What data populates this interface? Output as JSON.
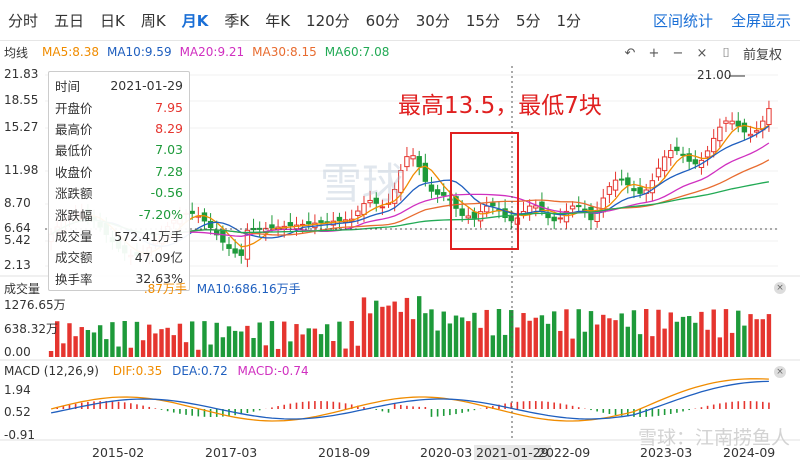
{
  "tabs": [
    "分时",
    "五日",
    "日K",
    "周K",
    "月K",
    "季K",
    "年K",
    "120分",
    "60分",
    "30分",
    "15分",
    "5分",
    "1分"
  ],
  "active_tab": "月K",
  "right_tabs": [
    "区间统计",
    "全屏显示"
  ],
  "ma_bar": {
    "label": "均线",
    "items": [
      {
        "text": "MA5:8.38",
        "color": "#f08c00"
      },
      {
        "text": "MA10:9.59",
        "color": "#1f5fbf"
      },
      {
        "text": "MA20:9.21",
        "color": "#d030c0"
      },
      {
        "text": "MA30:8.15",
        "color": "#e86c30"
      },
      {
        "text": "MA60:7.08",
        "color": "#22aa55"
      }
    ]
  },
  "toolbar": {
    "undo_icon": "↶",
    "plus_icon": "+",
    "minus_icon": "−",
    "close_icon": "×",
    "more_icon": "⌷",
    "fuquan": "前复权"
  },
  "price_axis": [
    "21.83",
    "18.55",
    "15.27",
    "11.98",
    "8.70",
    "6.64",
    "5.42",
    "2.13"
  ],
  "max_label": "21.00",
  "tooltip": {
    "rows": [
      {
        "k": "时间",
        "v": "2021-01-29",
        "c": ""
      },
      {
        "k": "开盘价",
        "v": "7.95",
        "c": "red"
      },
      {
        "k": "最高价",
        "v": "8.29",
        "c": "red"
      },
      {
        "k": "最低价",
        "v": "7.03",
        "c": "green"
      },
      {
        "k": "收盘价",
        "v": "7.28",
        "c": "green"
      },
      {
        "k": "涨跌额",
        "v": "-0.56",
        "c": "green"
      },
      {
        "k": "涨跌幅",
        "v": "-7.20%",
        "c": "green"
      },
      {
        "k": "成交量",
        "v": "572.41万手",
        "c": ""
      },
      {
        "k": "成交额",
        "v": "47.09亿",
        "c": ""
      },
      {
        "k": "换手率",
        "v": "32.63%",
        "c": ""
      }
    ]
  },
  "annotation": "最高13.5，最低7块",
  "volume": {
    "title": "成交量",
    "ma_partial": ".87万手",
    "ma10": "MA10:686.16万手",
    "axis": [
      "1276.65万",
      "638.32万",
      "0.00"
    ]
  },
  "macd": {
    "title": "MACD (12,26,9)",
    "dif": "DIF:0.35",
    "dea": "DEA:0.72",
    "macd": "MACD:-0.74",
    "axis": [
      "1.94",
      "0.52",
      "-0.91"
    ]
  },
  "x_labels": [
    "2015-02",
    "2017-03",
    "2018-09",
    "2020-03",
    "2021-01-29",
    "2022-09",
    "2023-03",
    "2024-09"
  ],
  "watermark": "雪球：江南捞鱼人",
  "center_watermark": "雪球"
}
